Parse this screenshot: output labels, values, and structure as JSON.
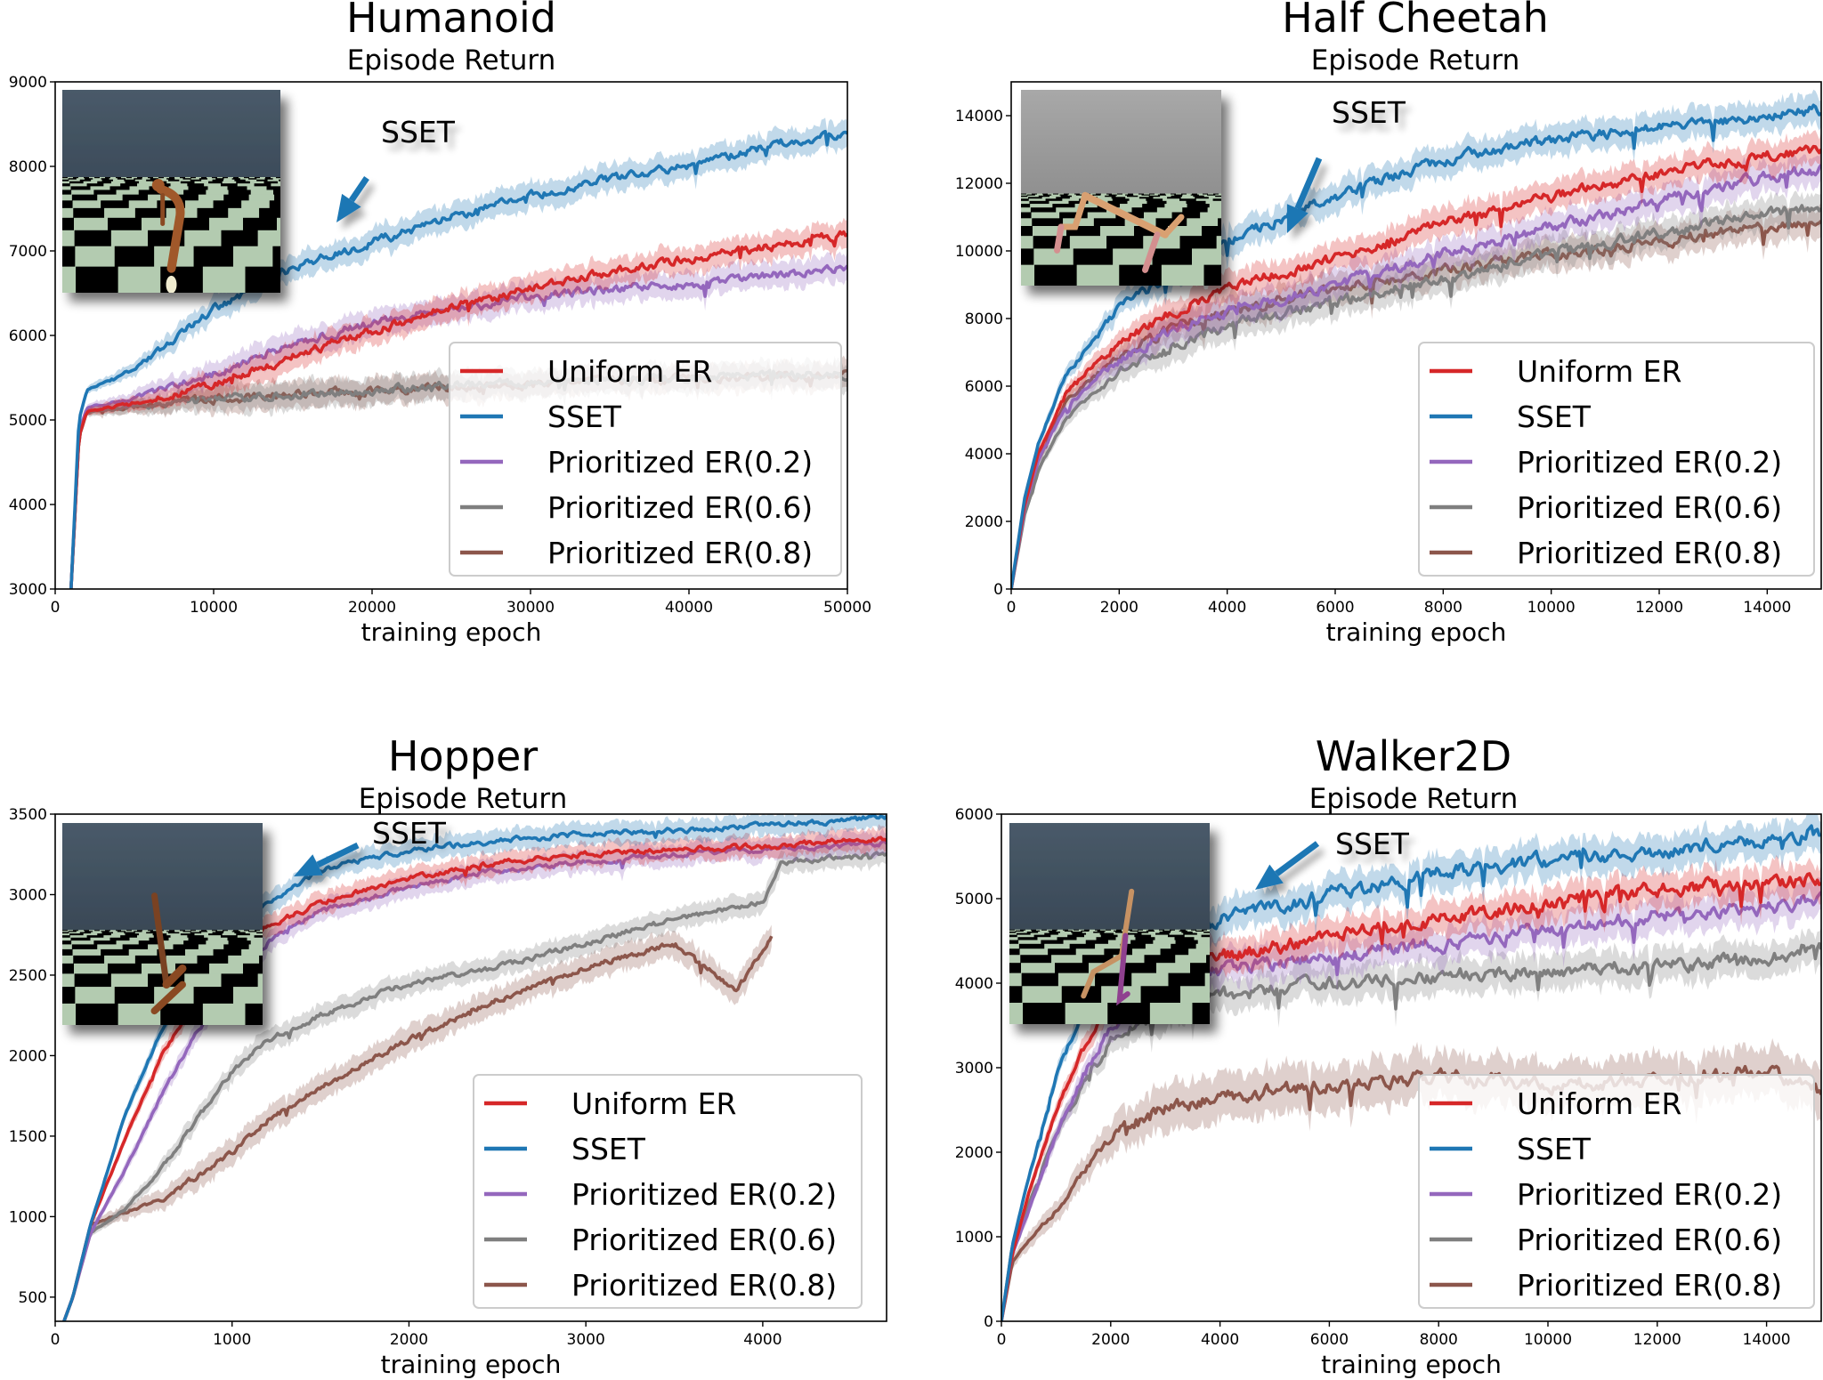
{
  "colors": {
    "Uniform ER": "#d62728",
    "SSET": "#1f77b4",
    "Prioritized ER(0.2)": "#9467bd",
    "Prioritized ER(0.6)": "#7f7f7f",
    "Prioritized ER(0.8)": "#8c564b"
  },
  "chart_data": [
    {
      "type": "line",
      "title": "Humanoid",
      "subtitle": "Episode Return",
      "xlabel": "training epoch",
      "ylabel": "",
      "xlim": [
        0,
        50000
      ],
      "ylim": [
        3000,
        9000
      ],
      "xticks": [
        0,
        10000,
        20000,
        30000,
        40000,
        50000
      ],
      "yticks": [
        3000,
        4000,
        5000,
        6000,
        7000,
        8000,
        9000
      ],
      "xtick_labels": [
        "0",
        "10000",
        "20000",
        "30000",
        "40000",
        "50000"
      ],
      "ytick_labels": [
        "3000",
        "4000",
        "5000",
        "6000",
        "7000",
        "8000",
        "9000"
      ],
      "legend": [
        "Uniform ER",
        "SSET",
        "Prioritized ER(0.2)",
        "Prioritized ER(0.6)",
        "Prioritized ER(0.8)"
      ],
      "legend_position": "lower-right",
      "annotation": "SSET",
      "inset_image": "humanoid-simulation",
      "series": [
        {
          "name": "Uniform ER",
          "x": [
            1000,
            1500,
            2000,
            5000,
            10000,
            15000,
            20000,
            25000,
            30000,
            35000,
            40000,
            45000,
            50000
          ],
          "values": [
            3000,
            4800,
            5100,
            5200,
            5400,
            5750,
            6050,
            6350,
            6550,
            6750,
            6900,
            7050,
            7200
          ]
        },
        {
          "name": "SSET",
          "x": [
            1000,
            1500,
            2000,
            5000,
            10000,
            15000,
            20000,
            25000,
            30000,
            35000,
            40000,
            45000,
            50000
          ],
          "values": [
            3000,
            5000,
            5350,
            5600,
            6300,
            6800,
            7100,
            7400,
            7650,
            7850,
            8000,
            8250,
            8400
          ]
        },
        {
          "name": "Prioritized ER(0.2)",
          "x": [
            1000,
            1500,
            2000,
            5000,
            10000,
            15000,
            20000,
            25000,
            30000,
            35000,
            40000,
            45000,
            50000
          ],
          "values": [
            3000,
            4850,
            5150,
            5250,
            5550,
            5900,
            6150,
            6300,
            6450,
            6550,
            6600,
            6700,
            6800
          ]
        },
        {
          "name": "Prioritized ER(0.6)",
          "x": [
            1000,
            1500,
            2000,
            5000,
            10000,
            15000,
            20000,
            25000,
            30000,
            35000,
            40000,
            45000,
            50000
          ],
          "values": [
            3000,
            4800,
            5100,
            5150,
            5250,
            5300,
            5350,
            5400,
            5450,
            5480,
            5500,
            5520,
            5550
          ]
        },
        {
          "name": "Prioritized ER(0.8)",
          "x": [
            1000,
            1500,
            2000,
            5000,
            10000,
            15000,
            20000,
            25000,
            30000,
            35000,
            40000,
            45000,
            50000
          ],
          "values": [
            3000,
            4800,
            5100,
            5150,
            5250,
            5300,
            5350,
            5380,
            5420,
            5450,
            5480,
            5500,
            5520
          ]
        }
      ]
    },
    {
      "type": "line",
      "title": "Half Cheetah",
      "subtitle": "Episode Return",
      "xlabel": "training epoch",
      "ylabel": "",
      "xlim": [
        0,
        15000
      ],
      "ylim": [
        0,
        15000
      ],
      "xticks": [
        0,
        2000,
        4000,
        6000,
        8000,
        10000,
        12000,
        14000
      ],
      "yticks": [
        0,
        2000,
        4000,
        6000,
        8000,
        10000,
        12000,
        14000
      ],
      "xtick_labels": [
        "0",
        "2000",
        "4000",
        "6000",
        "8000",
        "10000",
        "12000",
        "14000"
      ],
      "ytick_labels": [
        "0",
        "2000",
        "4000",
        "6000",
        "8000",
        "10000",
        "12000",
        "14000"
      ],
      "legend": [
        "Uniform ER",
        "SSET",
        "Prioritized ER(0.2)",
        "Prioritized ER(0.6)",
        "Prioritized ER(0.8)"
      ],
      "legend_position": "lower-right",
      "annotation": "SSET",
      "inset_image": "half-cheetah-simulation",
      "series": [
        {
          "name": "Uniform ER",
          "x": [
            0,
            250,
            500,
            1000,
            2000,
            3000,
            4000,
            6000,
            8000,
            10000,
            12000,
            14000,
            15000
          ],
          "values": [
            0,
            2500,
            4000,
            5800,
            7300,
            8200,
            8900,
            9800,
            10800,
            11600,
            12300,
            12800,
            13000
          ]
        },
        {
          "name": "SSET",
          "x": [
            0,
            250,
            500,
            1000,
            2000,
            3000,
            4000,
            6000,
            8000,
            10000,
            12000,
            14000,
            15000
          ],
          "values": [
            0,
            2700,
            4300,
            6300,
            8300,
            9400,
            10300,
            11600,
            12700,
            13300,
            13700,
            14000,
            14200
          ]
        },
        {
          "name": "Prioritized ER(0.2)",
          "x": [
            0,
            250,
            500,
            1000,
            2000,
            3000,
            4000,
            6000,
            8000,
            10000,
            12000,
            14000,
            15000
          ],
          "values": [
            0,
            2400,
            3800,
            5400,
            6800,
            7700,
            8200,
            9000,
            9900,
            10700,
            11500,
            12200,
            12400
          ]
        },
        {
          "name": "Prioritized ER(0.6)",
          "x": [
            0,
            250,
            500,
            1000,
            2000,
            3000,
            4000,
            6000,
            8000,
            10000,
            12000,
            14000,
            15000
          ],
          "values": [
            0,
            2200,
            3500,
            5000,
            6500,
            7200,
            7800,
            8500,
            9200,
            9900,
            10500,
            11100,
            11300
          ]
        },
        {
          "name": "Prioritized ER(0.8)",
          "x": [
            0,
            250,
            500,
            1000,
            2000,
            3000,
            4000,
            6000,
            8000,
            10000,
            12000,
            14000,
            15000
          ],
          "values": [
            0,
            2400,
            3800,
            5500,
            6900,
            7700,
            8200,
            8900,
            9400,
            9900,
            10300,
            10700,
            10800
          ]
        }
      ]
    },
    {
      "type": "line",
      "title": "Hopper",
      "subtitle": "Episode Return",
      "xlabel": "training epoch",
      "ylabel": "",
      "xlim": [
        0,
        4700
      ],
      "ylim": [
        350,
        3500
      ],
      "xticks": [
        0,
        1000,
        2000,
        3000,
        4000
      ],
      "yticks": [
        500,
        1000,
        1500,
        2000,
        2500,
        3000,
        3500
      ],
      "xtick_labels": [
        "0",
        "1000",
        "2000",
        "3000",
        "4000"
      ],
      "ytick_labels": [
        "500",
        "1000",
        "1500",
        "2000",
        "2500",
        "3000",
        "3500"
      ],
      "legend": [
        "Uniform ER",
        "SSET",
        "Prioritized ER(0.2)",
        "Prioritized ER(0.6)",
        "Prioritized ER(0.8)"
      ],
      "legend_position": "lower-right",
      "annotation": "SSET",
      "inset_image": "hopper-simulation",
      "series": [
        {
          "name": "Uniform ER",
          "x": [
            50,
            100,
            200,
            400,
            600,
            800,
            1000,
            1200,
            1500,
            2000,
            2500,
            3000,
            3500,
            4000,
            4700
          ],
          "values": [
            350,
            500,
            950,
            1500,
            2000,
            2350,
            2600,
            2800,
            2950,
            3100,
            3200,
            3250,
            3280,
            3300,
            3350
          ]
        },
        {
          "name": "SSET",
          "x": [
            50,
            100,
            200,
            400,
            600,
            800,
            1000,
            1200,
            1500,
            2000,
            2500,
            3000,
            3500,
            4000,
            4700
          ],
          "values": [
            350,
            500,
            950,
            1650,
            2150,
            2550,
            2800,
            2950,
            3150,
            3280,
            3330,
            3380,
            3400,
            3430,
            3480
          ]
        },
        {
          "name": "Prioritized ER(0.2)",
          "x": [
            50,
            100,
            200,
            400,
            600,
            800,
            1000,
            1200,
            1500,
            2000,
            2500,
            3000,
            3500,
            4000,
            4700
          ],
          "values": [
            350,
            500,
            900,
            1300,
            1750,
            2150,
            2450,
            2700,
            2900,
            3050,
            3150,
            3200,
            3250,
            3280,
            3320
          ]
        },
        {
          "name": "Prioritized ER(0.6)",
          "x": [
            50,
            100,
            200,
            400,
            600,
            800,
            1000,
            1200,
            1500,
            2000,
            2500,
            3000,
            3500,
            4000,
            4100,
            4700
          ],
          "values": [
            350,
            500,
            900,
            1050,
            1300,
            1600,
            1900,
            2100,
            2250,
            2450,
            2550,
            2700,
            2850,
            2950,
            3200,
            3250
          ]
        },
        {
          "name": "Prioritized ER(0.8)",
          "x": [
            50,
            100,
            200,
            400,
            600,
            800,
            1000,
            1200,
            1500,
            2000,
            2500,
            3000,
            3500,
            3850,
            4050
          ],
          "values": [
            350,
            500,
            950,
            1030,
            1100,
            1250,
            1400,
            1600,
            1800,
            2100,
            2350,
            2550,
            2700,
            2400,
            2750
          ]
        }
      ]
    },
    {
      "type": "line",
      "title": "Walker2D",
      "subtitle": "Episode Return",
      "xlabel": "training epoch",
      "ylabel": "",
      "xlim": [
        0,
        15000
      ],
      "ylim": [
        0,
        6000
      ],
      "xticks": [
        0,
        2000,
        4000,
        6000,
        8000,
        10000,
        12000,
        14000
      ],
      "yticks": [
        0,
        1000,
        2000,
        3000,
        4000,
        5000,
        6000
      ],
      "xtick_labels": [
        "0",
        "2000",
        "4000",
        "6000",
        "8000",
        "10000",
        "12000",
        "14000"
      ],
      "ytick_labels": [
        "0",
        "1000",
        "2000",
        "3000",
        "4000",
        "5000",
        "6000"
      ],
      "legend": [
        "Uniform ER",
        "SSET",
        "Prioritized ER(0.2)",
        "Prioritized ER(0.6)",
        "Prioritized ER(0.8)"
      ],
      "legend_position": "lower-right",
      "annotation": "SSET",
      "inset_image": "walker2d-simulation",
      "series": [
        {
          "name": "Uniform ER",
          "x": [
            0,
            200,
            500,
            1000,
            1500,
            2000,
            3000,
            4000,
            6000,
            8000,
            10000,
            12000,
            14000,
            15000
          ],
          "values": [
            0,
            800,
            1500,
            2500,
            3200,
            3700,
            4100,
            4300,
            4550,
            4750,
            4950,
            5100,
            5200,
            5250
          ]
        },
        {
          "name": "SSET",
          "x": [
            0,
            200,
            500,
            1000,
            1500,
            2000,
            3000,
            4000,
            6000,
            8000,
            10000,
            12000,
            14000,
            15000
          ],
          "values": [
            0,
            900,
            1700,
            2900,
            3700,
            4200,
            4550,
            4750,
            5050,
            5300,
            5450,
            5550,
            5700,
            5750
          ]
        },
        {
          "name": "Prioritized ER(0.2)",
          "x": [
            0,
            200,
            500,
            1000,
            1500,
            2000,
            3000,
            4000,
            6000,
            8000,
            10000,
            12000,
            14000,
            15000
          ],
          "values": [
            0,
            800,
            1300,
            2200,
            2900,
            3500,
            3950,
            4150,
            4300,
            4450,
            4650,
            4800,
            4900,
            5000
          ]
        },
        {
          "name": "Prioritized ER(0.6)",
          "x": [
            0,
            200,
            500,
            1000,
            1500,
            2000,
            3000,
            4000,
            6000,
            8000,
            10000,
            12000,
            14000,
            15000
          ],
          "values": [
            0,
            900,
            1400,
            2200,
            2800,
            3300,
            3700,
            3850,
            4000,
            4100,
            4150,
            4200,
            4300,
            4400
          ]
        },
        {
          "name": "Prioritized ER(0.8)",
          "x": [
            0,
            200,
            500,
            1000,
            1500,
            2000,
            3000,
            4000,
            6000,
            8000,
            10000,
            12000,
            14000,
            15000
          ],
          "values": [
            0,
            700,
            950,
            1300,
            1800,
            2200,
            2500,
            2650,
            2800,
            2900,
            2800,
            2850,
            2950,
            2700
          ]
        }
      ]
    }
  ]
}
